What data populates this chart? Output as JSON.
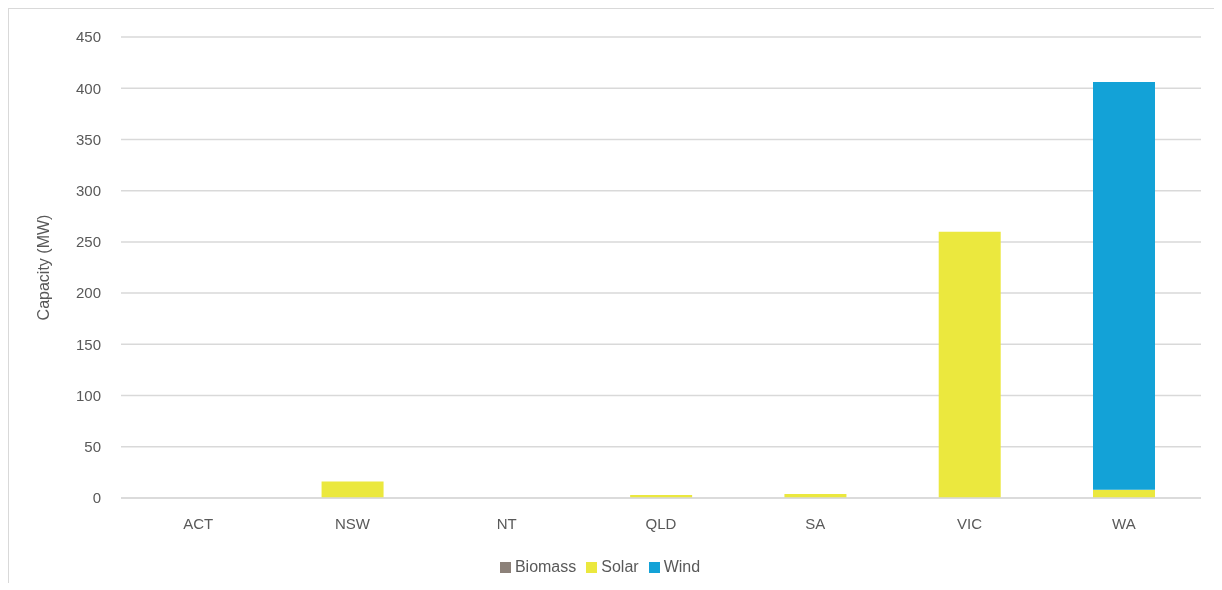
{
  "chart_data": {
    "type": "bar",
    "stacked": true,
    "ylabel": "Capacity (MW)",
    "categories": [
      "ACT",
      "NSW",
      "NT",
      "QLD",
      "SA",
      "VIC",
      "WA"
    ],
    "series": [
      {
        "name": "Biomass",
        "color": "#8c8179",
        "values": [
          0,
          0,
          0,
          0,
          0,
          0,
          0
        ]
      },
      {
        "name": "Solar",
        "color": "#ebe83e",
        "values": [
          0,
          16,
          0,
          3,
          4,
          260,
          8
        ]
      },
      {
        "name": "Wind",
        "color": "#13a2d7",
        "values": [
          0,
          0,
          0,
          0,
          0,
          0,
          398
        ]
      }
    ],
    "ylim": [
      0,
      450
    ],
    "yticks": [
      0,
      50,
      100,
      150,
      200,
      250,
      300,
      350,
      400,
      450
    ],
    "grid": "y",
    "legend": "bottom"
  }
}
